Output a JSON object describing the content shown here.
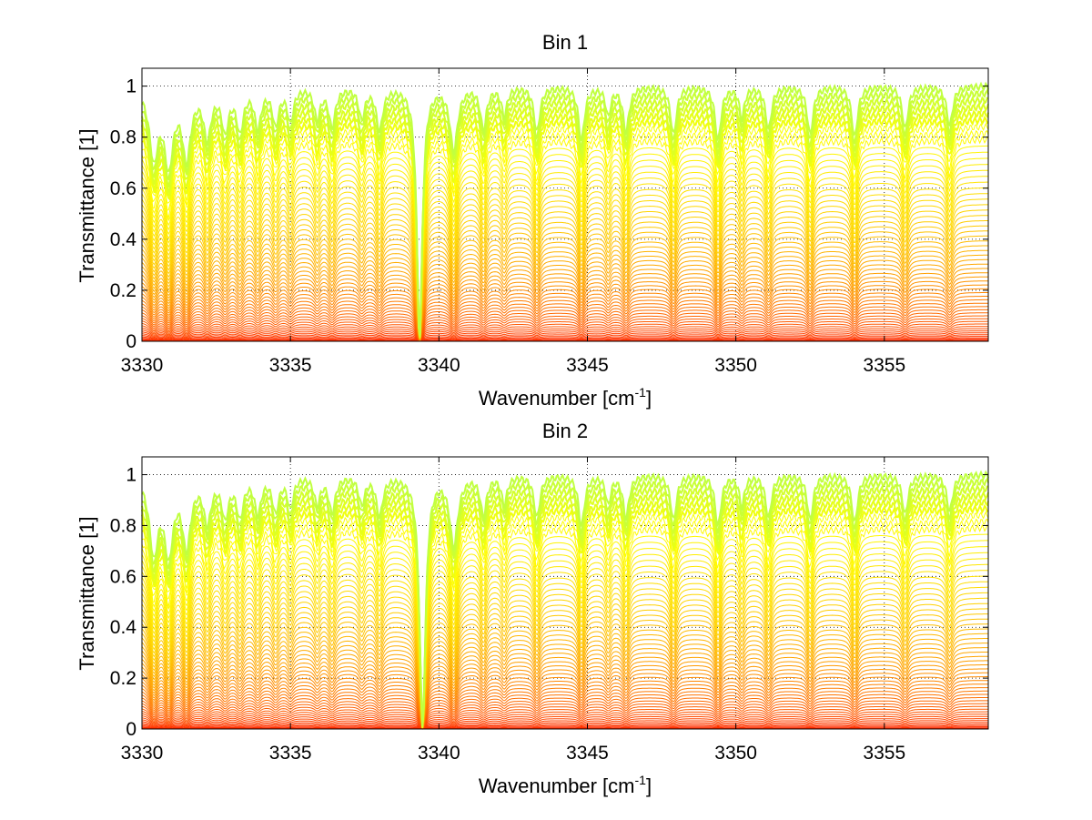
{
  "chart_data": [
    {
      "type": "line",
      "title": "Bin 1",
      "xlabel": {
        "main": "Wavenumber [cm",
        "sup": "-1",
        "close": "]"
      },
      "ylabel": "Transmittance [1]",
      "xlim": [
        3330,
        3358.5
      ],
      "ylim": [
        0,
        1.07
      ],
      "xticks": [
        3330,
        3335,
        3340,
        3345,
        3350,
        3355
      ],
      "yticks": [
        0,
        0.2,
        0.4,
        0.6,
        0.8,
        1
      ],
      "ytick_labels": [
        "0",
        "0.2",
        "0.4",
        "0.6",
        "0.8",
        "1"
      ],
      "grid": "dotted",
      "legend": "none",
      "series_count": 60,
      "colormap": [
        "#ff2000",
        "#ff6000",
        "#ffa000",
        "#ffd500",
        "#ffff00",
        "#80ff80"
      ],
      "strong_line_center": 3339.35,
      "lines": [
        {
          "x": 3330.4,
          "depth": 0.5,
          "width": 0.18
        },
        {
          "x": 3330.9,
          "depth": 0.55,
          "width": 0.18
        },
        {
          "x": 3331.5,
          "depth": 0.5,
          "width": 0.17
        },
        {
          "x": 3332.2,
          "depth": 0.35,
          "width": 0.15
        },
        {
          "x": 3332.8,
          "depth": 0.3,
          "width": 0.14
        },
        {
          "x": 3333.3,
          "depth": 0.3,
          "width": 0.14
        },
        {
          "x": 3333.9,
          "depth": 0.28,
          "width": 0.13
        },
        {
          "x": 3334.5,
          "depth": 0.26,
          "width": 0.13
        },
        {
          "x": 3335.0,
          "depth": 0.24,
          "width": 0.12
        },
        {
          "x": 3335.9,
          "depth": 0.22,
          "width": 0.12
        },
        {
          "x": 3336.4,
          "depth": 0.28,
          "width": 0.13
        },
        {
          "x": 3337.4,
          "depth": 0.22,
          "width": 0.12
        },
        {
          "x": 3338.0,
          "depth": 0.3,
          "width": 0.13
        },
        {
          "x": 3339.35,
          "depth": 0.99,
          "width": 0.11
        },
        {
          "x": 3340.5,
          "depth": 0.45,
          "width": 0.15
        },
        {
          "x": 3341.5,
          "depth": 0.3,
          "width": 0.12
        },
        {
          "x": 3342.2,
          "depth": 0.2,
          "width": 0.11
        },
        {
          "x": 3343.3,
          "depth": 0.32,
          "width": 0.12
        },
        {
          "x": 3344.8,
          "depth": 0.38,
          "width": 0.12
        },
        {
          "x": 3345.7,
          "depth": 0.2,
          "width": 0.1
        },
        {
          "x": 3346.3,
          "depth": 0.32,
          "width": 0.12
        },
        {
          "x": 3347.9,
          "depth": 0.34,
          "width": 0.12
        },
        {
          "x": 3349.4,
          "depth": 0.38,
          "width": 0.12
        },
        {
          "x": 3350.2,
          "depth": 0.22,
          "width": 0.1
        },
        {
          "x": 3351.1,
          "depth": 0.3,
          "width": 0.12
        },
        {
          "x": 3352.5,
          "depth": 0.34,
          "width": 0.12
        },
        {
          "x": 3354.0,
          "depth": 0.36,
          "width": 0.12
        },
        {
          "x": 3355.7,
          "depth": 0.3,
          "width": 0.12
        },
        {
          "x": 3357.2,
          "depth": 0.28,
          "width": 0.12
        }
      ]
    },
    {
      "type": "line",
      "title": "Bin 2",
      "xlabel": {
        "main": "Wavenumber [cm",
        "sup": "-1",
        "close": "]"
      },
      "ylabel": "Transmittance [1]",
      "xlim": [
        3330,
        3358.5
      ],
      "ylim": [
        0,
        1.07
      ],
      "xticks": [
        3330,
        3335,
        3340,
        3345,
        3350,
        3355
      ],
      "yticks": [
        0,
        0.2,
        0.4,
        0.6,
        0.8,
        1
      ],
      "ytick_labels": [
        "0",
        "0.2",
        "0.4",
        "0.6",
        "0.8",
        "1"
      ],
      "grid": "dotted",
      "legend": "none",
      "series_count": 60,
      "colormap": [
        "#ff2000",
        "#ff6000",
        "#ffa000",
        "#ffd500",
        "#ffff00",
        "#80ff80"
      ],
      "strong_line_center": 3339.45,
      "lines": [
        {
          "x": 3330.4,
          "depth": 0.55,
          "width": 0.18
        },
        {
          "x": 3330.9,
          "depth": 0.55,
          "width": 0.18
        },
        {
          "x": 3331.5,
          "depth": 0.5,
          "width": 0.17
        },
        {
          "x": 3332.2,
          "depth": 0.32,
          "width": 0.15
        },
        {
          "x": 3332.8,
          "depth": 0.28,
          "width": 0.14
        },
        {
          "x": 3333.3,
          "depth": 0.28,
          "width": 0.14
        },
        {
          "x": 3333.9,
          "depth": 0.26,
          "width": 0.13
        },
        {
          "x": 3334.5,
          "depth": 0.25,
          "width": 0.13
        },
        {
          "x": 3335.0,
          "depth": 0.22,
          "width": 0.12
        },
        {
          "x": 3335.9,
          "depth": 0.2,
          "width": 0.12
        },
        {
          "x": 3336.4,
          "depth": 0.26,
          "width": 0.13
        },
        {
          "x": 3337.4,
          "depth": 0.2,
          "width": 0.12
        },
        {
          "x": 3338.0,
          "depth": 0.28,
          "width": 0.13
        },
        {
          "x": 3339.45,
          "depth": 0.99,
          "width": 0.12
        },
        {
          "x": 3340.5,
          "depth": 0.5,
          "width": 0.16
        },
        {
          "x": 3341.5,
          "depth": 0.28,
          "width": 0.12
        },
        {
          "x": 3342.2,
          "depth": 0.2,
          "width": 0.11
        },
        {
          "x": 3343.3,
          "depth": 0.3,
          "width": 0.12
        },
        {
          "x": 3344.8,
          "depth": 0.36,
          "width": 0.12
        },
        {
          "x": 3345.7,
          "depth": 0.2,
          "width": 0.1
        },
        {
          "x": 3346.3,
          "depth": 0.3,
          "width": 0.12
        },
        {
          "x": 3347.9,
          "depth": 0.32,
          "width": 0.12
        },
        {
          "x": 3349.4,
          "depth": 0.36,
          "width": 0.12
        },
        {
          "x": 3350.2,
          "depth": 0.22,
          "width": 0.1
        },
        {
          "x": 3351.1,
          "depth": 0.3,
          "width": 0.12
        },
        {
          "x": 3352.5,
          "depth": 0.32,
          "width": 0.12
        },
        {
          "x": 3354.0,
          "depth": 0.34,
          "width": 0.12
        },
        {
          "x": 3355.7,
          "depth": 0.28,
          "width": 0.12
        },
        {
          "x": 3357.2,
          "depth": 0.26,
          "width": 0.12
        }
      ]
    }
  ]
}
